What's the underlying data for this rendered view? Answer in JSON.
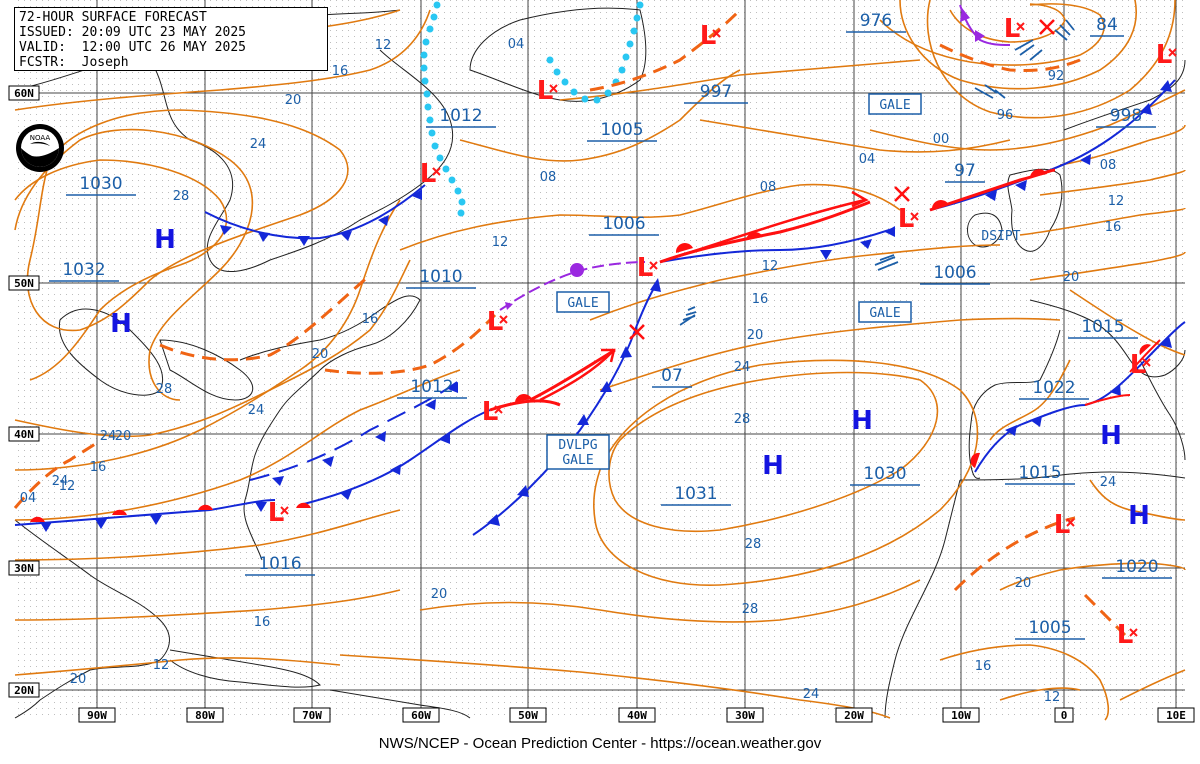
{
  "header": {
    "line1": "72-HOUR SURFACE FORECAST",
    "line2": "ISSUED: 20:09 UTC 23 MAY 2025",
    "line3": "VALID:  12:00 UTC 26 MAY 2025",
    "line4": "FCSTR:  Joseph"
  },
  "footer": "NWS/NCEP - Ocean Prediction Center - https://ocean.weather.gov",
  "logo_label": "NOAA",
  "colors": {
    "isobar": "#e07a10",
    "high": "#1414e0",
    "low": "#ff1a1a",
    "cold_front": "#1428d8",
    "warm_front": "#ff1010",
    "occluded": "#9a28e0",
    "ice_edge": "#29c7f2",
    "label_box": "#1c5fa8",
    "grid": "#444444",
    "coast": "#222222"
  },
  "lat_labels": [
    "60N",
    "50N",
    "40N",
    "30N",
    "20N"
  ],
  "lon_labels": [
    "90W",
    "80W",
    "70W",
    "60W",
    "50W",
    "40W",
    "30W",
    "20W",
    "10W",
    "0",
    "10E"
  ],
  "pressure_centers": [
    {
      "type": "H",
      "value": "1030"
    },
    {
      "type": "H",
      "value": "1032"
    },
    {
      "type": "H",
      "value": "1031"
    },
    {
      "type": "H",
      "value": "1030"
    },
    {
      "type": "H",
      "value": "1022"
    },
    {
      "type": "H",
      "value": "1020"
    },
    {
      "type": "L",
      "value": "1012"
    },
    {
      "type": "L",
      "value": "1010"
    },
    {
      "type": "L",
      "value": "1012"
    },
    {
      "type": "L",
      "value": "1016"
    },
    {
      "type": "L",
      "value": "1005"
    },
    {
      "type": "L",
      "value": "1006"
    },
    {
      "type": "L",
      "value": "997"
    },
    {
      "type": "L",
      "value": "976"
    },
    {
      "type": "L",
      "value": "998"
    },
    {
      "type": "L",
      "value": "1006"
    },
    {
      "type": "L",
      "value": "1015"
    },
    {
      "type": "L",
      "value": "1015"
    },
    {
      "type": "L",
      "value": "1005"
    }
  ],
  "pressure_labels": [
    "1030",
    "1032",
    "1012",
    "1010",
    "1012",
    "1016",
    "997",
    "1005",
    "1006",
    "1006",
    "976",
    "84",
    "998",
    "97",
    "1015",
    "1022",
    "1015",
    "1020",
    "1005",
    "07",
    "1031",
    "1030"
  ],
  "box_labels": [
    "GALE",
    "GALE",
    "GALE",
    "DVLPG\nGALE"
  ],
  "plain_labels": [
    "DSIPT"
  ],
  "isobar_values": [
    "12",
    "16",
    "20",
    "24",
    "28",
    "04",
    "08",
    "12",
    "16",
    "20",
    "24",
    "28",
    "28",
    "24",
    "20",
    "16",
    "12",
    "08",
    "04",
    "00",
    "96",
    "92",
    "12",
    "16",
    "20",
    "24",
    "28",
    "28",
    "24",
    "20",
    "16",
    "12",
    "08",
    "04",
    "12",
    "16",
    "20",
    "24",
    "20",
    "12",
    "16",
    "20",
    "24"
  ]
}
